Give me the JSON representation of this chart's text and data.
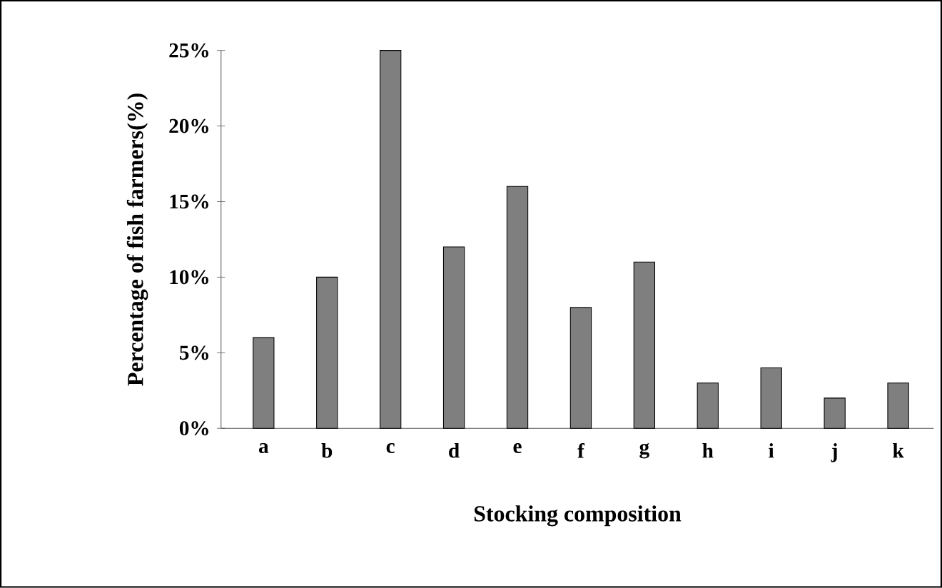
{
  "chart_data": {
    "type": "bar",
    "xlabel": "Stocking composition",
    "ylabel": "Percentage of fish farmers(%)",
    "categories": [
      "a",
      "b",
      "c",
      "d",
      "e",
      "f",
      "g",
      "h",
      "i",
      "j",
      "k"
    ],
    "values": [
      6,
      10,
      25,
      12,
      16,
      8,
      11,
      3,
      4,
      2,
      3
    ],
    "color": "#7f7f7f",
    "ylim": [
      0,
      25
    ],
    "yticks": [
      {
        "value": 0,
        "label": "0%"
      },
      {
        "value": 5,
        "label": "5%"
      },
      {
        "value": 10,
        "label": "10%"
      },
      {
        "value": 15,
        "label": "15%"
      },
      {
        "value": 20,
        "label": "20%"
      },
      {
        "value": 25,
        "label": "25%"
      }
    ],
    "line_style": "solid"
  }
}
